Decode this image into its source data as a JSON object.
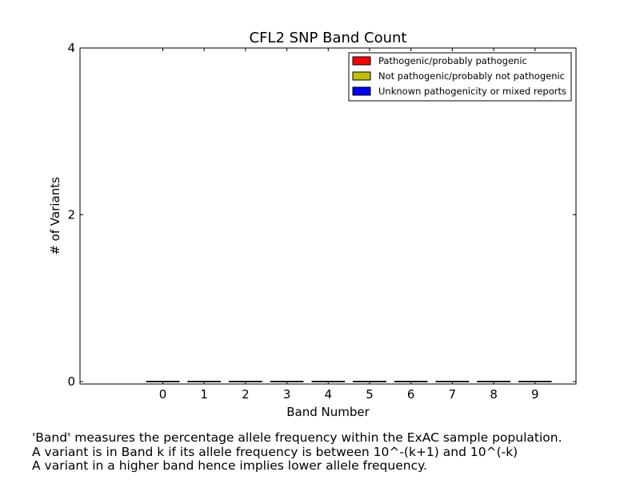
{
  "chart_data": {
    "type": "bar",
    "title": "CFL2 SNP Band Count",
    "xlabel": "Band Number",
    "ylabel": "# of Variants",
    "categories": [
      "0",
      "1",
      "2",
      "3",
      "4",
      "5",
      "6",
      "7",
      "8",
      "9"
    ],
    "ylim": [
      -0.03,
      4
    ],
    "yticks": [
      "0",
      "2",
      "4"
    ],
    "stacked": true,
    "series": [
      {
        "name": "Pathogenic/probably pathogenic",
        "color": "#ff0000",
        "values": [
          0,
          0,
          0,
          0,
          0,
          0,
          0,
          0,
          0,
          0
        ]
      },
      {
        "name": "Not pathogenic/probably not pathogenic",
        "color": "#bfbf00",
        "values": [
          0,
          0,
          0,
          0,
          0,
          0,
          0,
          0,
          0,
          0
        ]
      },
      {
        "name": "Unknown pathogenicity or mixed reports",
        "color": "#0000ff",
        "values": [
          0,
          0,
          0,
          0,
          0,
          0,
          0,
          0,
          0,
          0
        ]
      }
    ],
    "legend_position": "top-right",
    "grid": false
  },
  "caption": {
    "line1": "'Band' measures the percentage allele frequency within the ExAC sample population.",
    "line2": "A variant is in Band k if its allele frequency is between 10^-(k+1) and 10^(-k)",
    "line3": "A variant in a higher band hence implies lower allele frequency."
  }
}
